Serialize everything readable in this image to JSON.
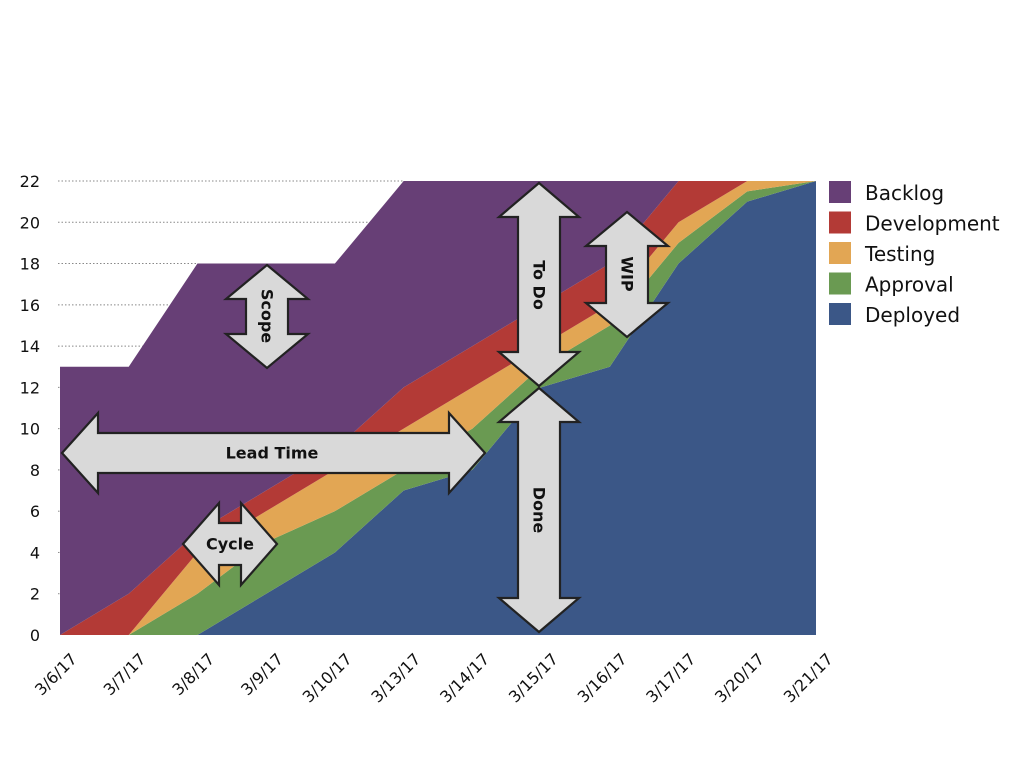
{
  "chart_data": {
    "type": "area",
    "stacked": true,
    "x": [
      "3/6/17",
      "3/7/17",
      "3/8/17",
      "3/9/17",
      "3/10/17",
      "3/13/17",
      "3/14/17",
      "3/15/17",
      "3/16/17",
      "3/17/17",
      "3/20/17",
      "3/21/17"
    ],
    "series": [
      {
        "name": "Deployed",
        "color": "#3b5787",
        "values": [
          0,
          0,
          0,
          2,
          4,
          7,
          8,
          12,
          13,
          18,
          21,
          22
        ]
      },
      {
        "name": "Approval",
        "color": "#6a9a52",
        "values": [
          0,
          0,
          2,
          2.5,
          2,
          1,
          2,
          1,
          2,
          1,
          0.5,
          0
        ]
      },
      {
        "name": "Testing",
        "color": "#e2a654",
        "values": [
          0,
          0,
          2,
          1.5,
          2,
          2,
          2,
          1,
          1,
          1,
          0.5,
          0
        ]
      },
      {
        "name": "Development",
        "color": "#b33a36",
        "values": [
          0,
          2,
          1,
          1,
          1,
          2,
          2,
          2,
          2,
          2,
          1,
          0
        ]
      },
      {
        "name": "Backlog",
        "color": "#673f76",
        "values": [
          13,
          11,
          13,
          11,
          9,
          10,
          8,
          6,
          4,
          0,
          0,
          0
        ]
      }
    ],
    "ylim": [
      0,
      22
    ],
    "yticks": [
      "0",
      "2",
      "4",
      "6",
      "8",
      "10",
      "12",
      "14",
      "16",
      "18",
      "20",
      "22"
    ],
    "grid": true,
    "legend": "right",
    "legend_order": [
      "Backlog",
      "Development",
      "Testing",
      "Approval",
      "Deployed"
    ],
    "annotations": [
      {
        "label": "Scope",
        "orientation": "vertical-double-arrow"
      },
      {
        "label": "Lead Time",
        "orientation": "horizontal-double-arrow"
      },
      {
        "label": "Cycle",
        "orientation": "horizontal-double-arrow"
      },
      {
        "label": "To Do",
        "orientation": "vertical-double-arrow"
      },
      {
        "label": "Done",
        "orientation": "vertical-double-arrow"
      },
      {
        "label": "WIP",
        "orientation": "vertical-double-arrow"
      }
    ]
  }
}
